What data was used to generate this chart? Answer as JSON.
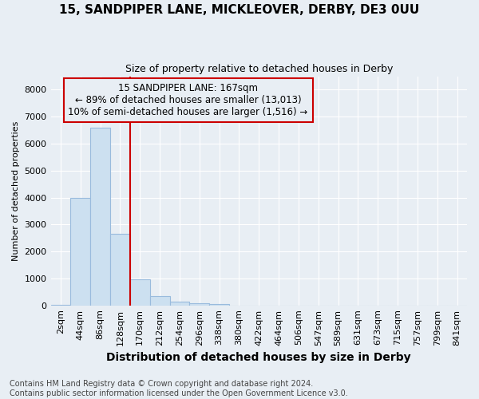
{
  "title": "15, SANDPIPER LANE, MICKLEOVER, DERBY, DE3 0UU",
  "subtitle": "Size of property relative to detached houses in Derby",
  "xlabel": "Distribution of detached houses by size in Derby",
  "ylabel": "Number of detached properties",
  "footnote": "Contains HM Land Registry data © Crown copyright and database right 2024.\nContains public sector information licensed under the Open Government Licence v3.0.",
  "bar_labels": [
    "2sqm",
    "44sqm",
    "86sqm",
    "128sqm",
    "170sqm",
    "212sqm",
    "254sqm",
    "296sqm",
    "338sqm",
    "380sqm",
    "422sqm",
    "464sqm",
    "506sqm",
    "547sqm",
    "589sqm",
    "631sqm",
    "673sqm",
    "715sqm",
    "757sqm",
    "799sqm",
    "841sqm"
  ],
  "bar_values": [
    30,
    4000,
    6600,
    2650,
    970,
    340,
    150,
    80,
    50,
    0,
    0,
    0,
    0,
    0,
    0,
    0,
    0,
    0,
    0,
    0,
    0
  ],
  "bar_color": "#cce0f0",
  "bar_edge_color": "#99bbdd",
  "vline_color": "#cc0000",
  "annotation_line1": "15 SANDPIPER LANE: 167sqm",
  "annotation_line2": "← 89% of detached houses are smaller (13,013)",
  "annotation_line3": "10% of semi-detached houses are larger (1,516) →",
  "ylim": [
    0,
    8500
  ],
  "yticks": [
    0,
    1000,
    2000,
    3000,
    4000,
    5000,
    6000,
    7000,
    8000
  ],
  "background_color": "#e8eef4",
  "plot_bg_color": "#e8eef4",
  "grid_color": "#ffffff",
  "title_fontsize": 11,
  "subtitle_fontsize": 9,
  "xlabel_fontsize": 10,
  "ylabel_fontsize": 8,
  "tick_fontsize": 8,
  "annot_fontsize": 8.5,
  "footnote_fontsize": 7
}
